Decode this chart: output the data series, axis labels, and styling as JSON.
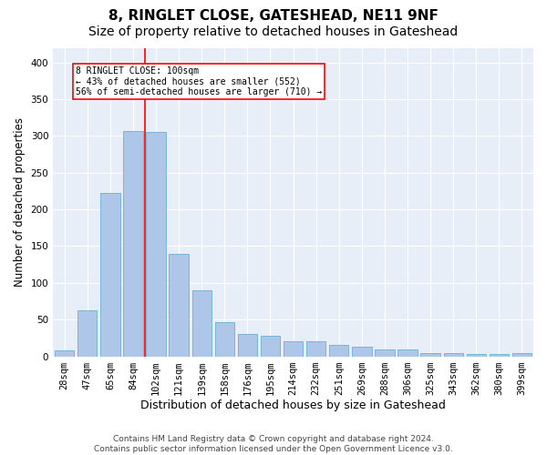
{
  "title": "8, RINGLET CLOSE, GATESHEAD, NE11 9NF",
  "subtitle": "Size of property relative to detached houses in Gateshead",
  "xlabel": "Distribution of detached houses by size in Gateshead",
  "ylabel": "Number of detached properties",
  "categories": [
    "28sqm",
    "47sqm",
    "65sqm",
    "84sqm",
    "102sqm",
    "121sqm",
    "139sqm",
    "158sqm",
    "176sqm",
    "195sqm",
    "214sqm",
    "232sqm",
    "251sqm",
    "269sqm",
    "288sqm",
    "306sqm",
    "325sqm",
    "343sqm",
    "362sqm",
    "380sqm",
    "399sqm"
  ],
  "values": [
    8,
    63,
    222,
    307,
    305,
    140,
    90,
    46,
    30,
    28,
    20,
    20,
    15,
    13,
    10,
    10,
    5,
    5,
    3,
    3,
    5
  ],
  "bar_color": "#aec6e8",
  "bar_edge_color": "#6baed6",
  "bar_width": 0.85,
  "red_line_x": 3.5,
  "annotation_line1": "8 RINGLET CLOSE: 100sqm",
  "annotation_line2": "← 43% of detached houses are smaller (552)",
  "annotation_line3": "56% of semi-detached houses are larger (710) →",
  "annotation_box_color": "white",
  "annotation_box_edge": "red",
  "red_line_color": "red",
  "ylim": [
    0,
    420
  ],
  "yticks": [
    0,
    50,
    100,
    150,
    200,
    250,
    300,
    350,
    400
  ],
  "plot_background": "#e8eef8",
  "footer_line1": "Contains HM Land Registry data © Crown copyright and database right 2024.",
  "footer_line2": "Contains public sector information licensed under the Open Government Licence v3.0.",
  "title_fontsize": 11,
  "subtitle_fontsize": 10,
  "xlabel_fontsize": 9,
  "ylabel_fontsize": 8.5,
  "tick_fontsize": 7.5,
  "footer_fontsize": 6.5
}
